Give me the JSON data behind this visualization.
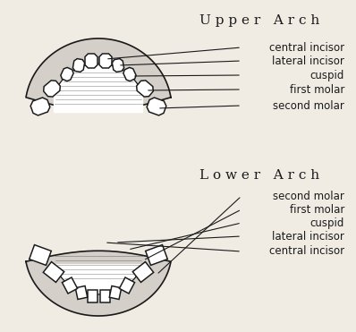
{
  "title_upper": "U p p e r   A r c h",
  "title_lower": "L o w e r   A r c h",
  "upper_labels": [
    "central incisor",
    "lateral incisor",
    "cuspid",
    "first molar",
    "second molar"
  ],
  "lower_labels": [
    "second molar",
    "first molar",
    "cuspid",
    "lateral incisor",
    "central incisor"
  ],
  "bg_color": "#f0ece4",
  "line_color": "#1a1a1a",
  "text_color": "#1a1a1a",
  "title_fontsize": 11,
  "label_fontsize": 8.5
}
